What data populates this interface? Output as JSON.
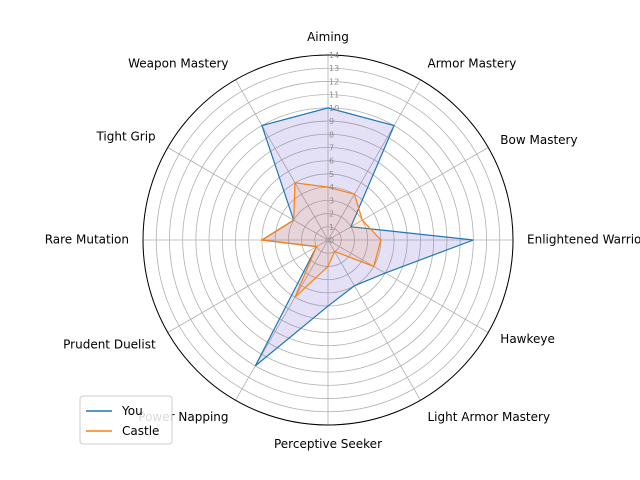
{
  "chart_data": {
    "type": "radar",
    "categories": [
      "Aiming",
      "Armor Mastery",
      "Bow Mastery",
      "Enlightened Warrior",
      "Hawkeye",
      "Light Armor Mastery",
      "Perceptive Seeker",
      "Power Napping",
      "Prudent Duelist",
      "Rare Mutation",
      "Tight Grip",
      "Weapon Mastery"
    ],
    "series": [
      {
        "name": "You",
        "color": "#1f77b4",
        "fill": "#6a5acd",
        "values": [
          10,
          10,
          2,
          11,
          5,
          4,
          5,
          11,
          1,
          5,
          3,
          10
        ]
      },
      {
        "name": "Castle",
        "color": "#ff7f0e",
        "values": [
          4,
          4,
          3,
          4,
          4,
          1,
          2,
          5,
          1,
          5,
          3,
          5
        ]
      }
    ],
    "rlim": [
      0,
      14
    ],
    "rticks": [
      "0",
      "1",
      "2",
      "3",
      "4",
      "5",
      "6",
      "7",
      "8",
      "9",
      "10",
      "11",
      "12",
      "13",
      "14"
    ],
    "grid": true,
    "legend_placement": "lower-left"
  }
}
